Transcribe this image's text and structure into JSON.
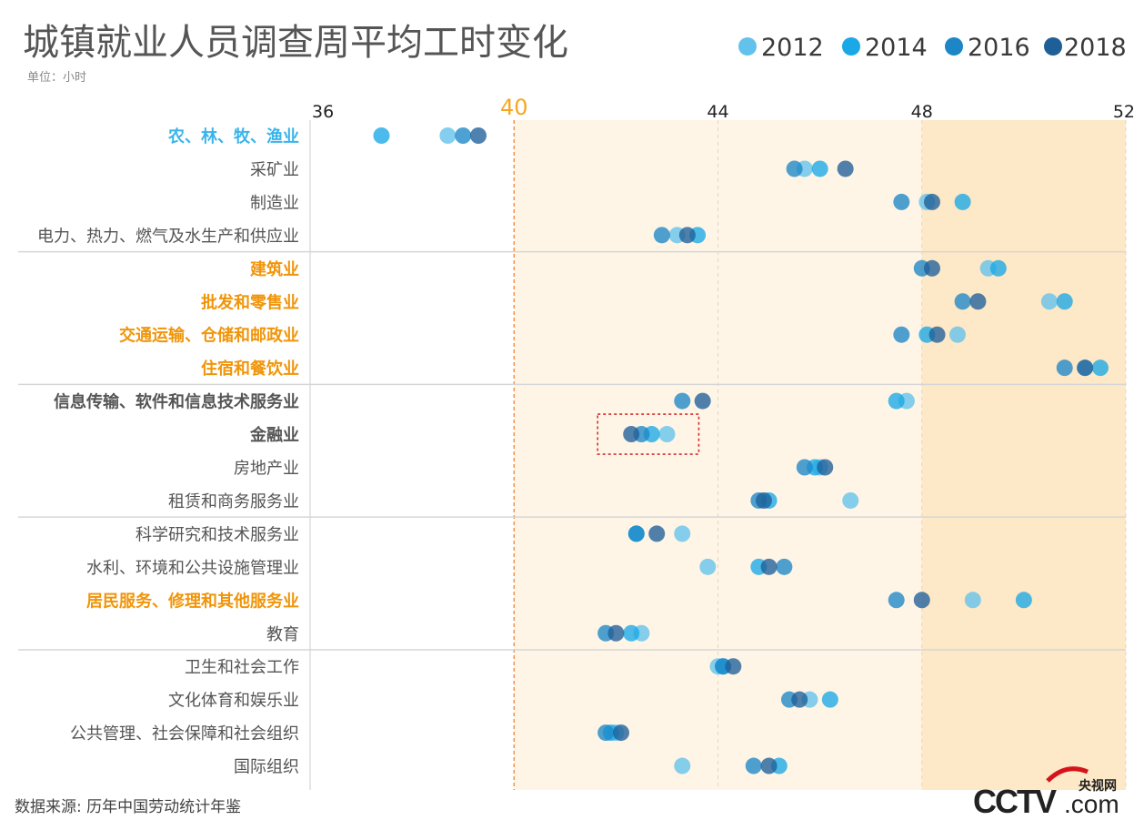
{
  "colors": {
    "y2012": "#62C2EC",
    "y2014": "#1AA8E6",
    "y2016": "#1C86C6",
    "y2018": "#1F5F98",
    "cat_blue": "#39B4EA",
    "cat_orange": "#F0950A",
    "cat_dark": "#555555",
    "cat_normal": "#555555",
    "band_light": "#FEF5E6",
    "band_dark": "#FDE8C7",
    "ref_line": "#E8792A"
  },
  "chart_data": {
    "type": "scatter",
    "title": "城镇就业人员调查周平均工时变化",
    "subtitle": "单位：小时",
    "source": "数据来源: 历年中国劳动统计年鉴",
    "xlim": [
      36,
      52
    ],
    "xticks": [
      36,
      40,
      44,
      48,
      52
    ],
    "highlight_tick": 40,
    "shaded_regions": [
      {
        "from": 40,
        "to": 48,
        "shade": "light"
      },
      {
        "from": 48,
        "to": 52,
        "shade": "dark"
      }
    ],
    "reference_line": 40,
    "legend_position": "top-right",
    "series": [
      {
        "name": "2012"
      },
      {
        "name": "2014"
      },
      {
        "name": "2016"
      },
      {
        "name": "2018"
      }
    ],
    "categories": [
      {
        "name": "农、林、牧、渔业",
        "style": "blue",
        "bold": true,
        "values": [
          38.7,
          37.4,
          39.0,
          39.3
        ]
      },
      {
        "name": "采矿业",
        "style": "normal",
        "bold": false,
        "values": [
          45.7,
          46.0,
          45.5,
          46.5
        ]
      },
      {
        "name": "制造业",
        "style": "normal",
        "bold": false,
        "values": [
          48.1,
          48.8,
          47.6,
          48.2
        ]
      },
      {
        "name": "电力、热力、燃气及水生产和供应业",
        "style": "normal",
        "bold": false,
        "values": [
          43.2,
          43.6,
          42.9,
          43.4
        ]
      },
      {
        "name": "建筑业",
        "style": "orange",
        "bold": true,
        "values": [
          49.3,
          49.5,
          48.0,
          48.2
        ]
      },
      {
        "name": "批发和零售业",
        "style": "orange",
        "bold": true,
        "values": [
          50.5,
          50.8,
          48.8,
          49.1
        ]
      },
      {
        "name": "交通运输、仓储和邮政业",
        "style": "orange",
        "bold": true,
        "values": [
          48.7,
          48.1,
          47.6,
          48.3
        ]
      },
      {
        "name": "住宿和餐饮业",
        "style": "orange",
        "bold": true,
        "values": [
          51.2,
          51.5,
          50.8,
          51.2
        ]
      },
      {
        "name": "信息传输、软件和信息技术服务业",
        "style": "dark",
        "bold": true,
        "values": [
          47.7,
          47.5,
          43.3,
          43.7
        ]
      },
      {
        "name": "金融业",
        "style": "dark",
        "bold": true,
        "values": [
          43.0,
          42.7,
          42.5,
          42.3
        ],
        "boxed": true
      },
      {
        "name": "房地产业",
        "style": "normal",
        "bold": false,
        "values": [
          46.0,
          45.9,
          45.7,
          46.1
        ]
      },
      {
        "name": "租赁和商务服务业",
        "style": "normal",
        "bold": false,
        "values": [
          46.6,
          45.0,
          44.8,
          44.9
        ]
      },
      {
        "name": "科学研究和技术服务业",
        "style": "normal",
        "bold": false,
        "values": [
          43.3,
          42.4,
          42.4,
          42.8
        ]
      },
      {
        "name": "水利、环境和公共设施管理业",
        "style": "normal",
        "bold": false,
        "values": [
          43.8,
          44.8,
          45.3,
          45.0
        ]
      },
      {
        "name": "居民服务、修理和其他服务业",
        "style": "orange",
        "bold": true,
        "values": [
          49.0,
          50.0,
          47.5,
          48.0
        ]
      },
      {
        "name": "教育",
        "style": "normal",
        "bold": false,
        "values": [
          42.5,
          42.3,
          41.8,
          42.0
        ]
      },
      {
        "name": "卫生和社会工作",
        "style": "normal",
        "bold": false,
        "values": [
          44.0,
          44.1,
          44.1,
          44.3
        ]
      },
      {
        "name": "文化体育和娱乐业",
        "style": "normal",
        "bold": false,
        "values": [
          45.8,
          46.2,
          45.4,
          45.6
        ]
      },
      {
        "name": "公共管理、社会保障和社会组织",
        "style": "normal",
        "bold": false,
        "values": [
          42.0,
          41.9,
          41.8,
          42.1
        ]
      },
      {
        "name": "国际组织",
        "style": "normal",
        "bold": false,
        "values": [
          43.3,
          45.2,
          44.7,
          45.0
        ]
      }
    ],
    "group_separators_after": [
      3,
      7,
      11,
      15
    ]
  },
  "logo": {
    "wordmark": "CCTV.com",
    "cn_text": "央视网"
  }
}
